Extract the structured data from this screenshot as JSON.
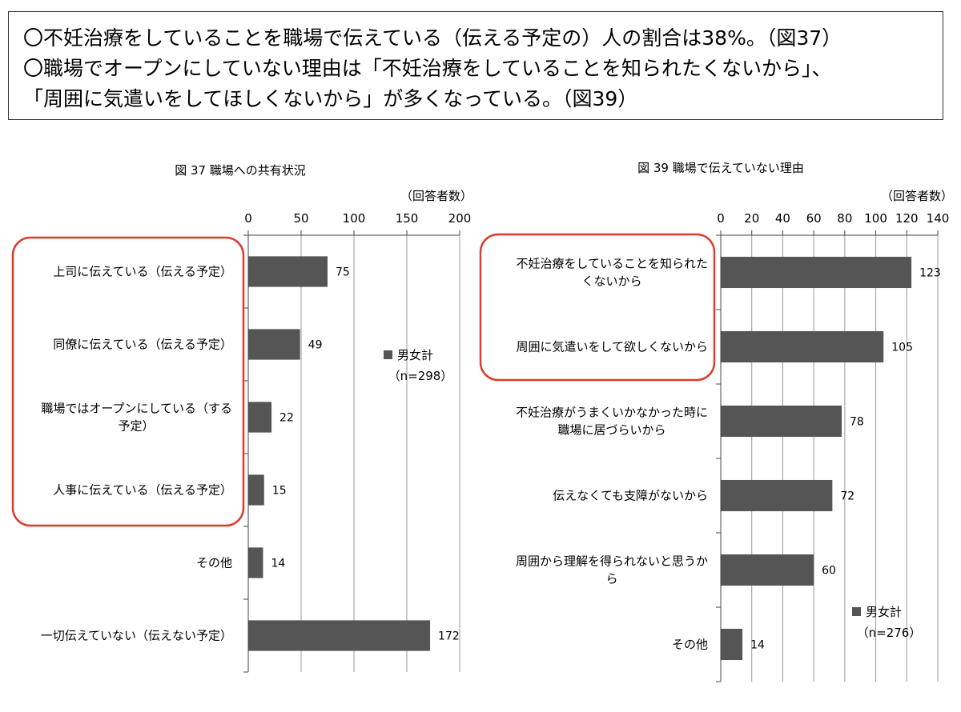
{
  "summary": {
    "lines": [
      "〇不妊治療をしていることを職場で伝えている（伝える予定の）人の割合は38%。（図37）",
      "〇職場でオープンにしていない理由は「不妊治療をしていることを知られたくないから」、",
      "「周囲に気遣いをしてほしくないから」が多くなっている。（図39）"
    ]
  },
  "colors": {
    "bar": "#555555",
    "highlight": "#e03a2e",
    "grid": "#999999"
  },
  "chart_data": [
    {
      "type": "bar",
      "orientation": "horizontal",
      "title": "図 37  職場への共有状況",
      "unit_label": "（回答者数）",
      "xlim": [
        0,
        200
      ],
      "ticks": [
        0,
        50,
        100,
        150,
        200
      ],
      "categories": [
        [
          "上司に伝えている（伝える予定）"
        ],
        [
          "同僚に伝えている（伝える予定）"
        ],
        [
          "職場ではオープンにしている（する",
          "予定）"
        ],
        [
          "人事に伝えている（伝える予定）"
        ],
        [
          "その他"
        ],
        [
          "一切伝えていない（伝えない予定）"
        ]
      ],
      "series": [
        {
          "name": "男女計",
          "values": [
            75,
            49,
            22,
            15,
            14,
            172
          ]
        }
      ],
      "legend_note": "（n=298）",
      "highlighted": [
        0,
        1,
        2,
        3
      ]
    },
    {
      "type": "bar",
      "orientation": "horizontal",
      "title": "図 39  職場で伝えていない理由",
      "unit_label": "（回答者数）",
      "xlim": [
        0,
        140
      ],
      "ticks": [
        0,
        20,
        40,
        60,
        80,
        100,
        120,
        140
      ],
      "categories": [
        [
          "不妊治療をしていることを知られた",
          "くないから"
        ],
        [
          "周囲に気遣いをして欲しくないから"
        ],
        [
          "不妊治療がうまくいかなかった時に",
          "職場に居づらいから"
        ],
        [
          "伝えなくても支障がないから"
        ],
        [
          "周囲から理解を得られないと思うか",
          "ら"
        ],
        [
          "その他"
        ]
      ],
      "series": [
        {
          "name": "男女計",
          "values": [
            123,
            105,
            78,
            72,
            60,
            14
          ]
        }
      ],
      "legend_note": "（n=276）",
      "highlighted": [
        0,
        1
      ]
    }
  ]
}
